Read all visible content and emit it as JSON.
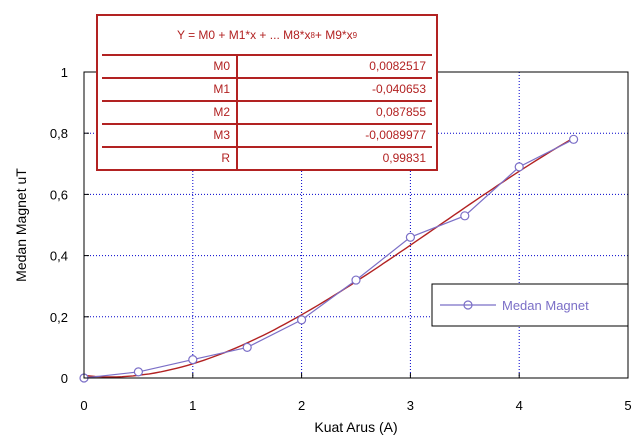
{
  "chart_data": {
    "type": "scatter",
    "xlabel": "Kuat Arus (A)",
    "ylabel": "Medan Magnet uT",
    "xlim": [
      0,
      5
    ],
    "ylim": [
      0,
      1
    ],
    "x_ticks": [
      "0",
      "1",
      "2",
      "3",
      "4",
      "5"
    ],
    "y_ticks": [
      "0",
      "0,2",
      "0,4",
      "0,6",
      "0,8",
      "1"
    ],
    "grid": true,
    "legend": "right",
    "series": [
      {
        "name": "Medan Magnet",
        "color": "#7b6fc7",
        "marker": "circle",
        "x": [
          0,
          0.5,
          1,
          1.5,
          2,
          2.5,
          3,
          3.5,
          4,
          4.5
        ],
        "y": [
          0.0,
          0.02,
          0.06,
          0.1,
          0.19,
          0.32,
          0.46,
          0.53,
          0.69,
          0.78
        ]
      }
    ],
    "fit": {
      "color": "#b22222",
      "equation_prefix": "Y = M0 + M1*x + ... M8*x",
      "equation_mid": " + M9*x",
      "exp1": "8",
      "exp2": "9",
      "coefficients": [
        {
          "name": "M0",
          "value": "0,0082517",
          "num": 0.0082517
        },
        {
          "name": "M1",
          "value": "-0,040653",
          "num": -0.040653
        },
        {
          "name": "M2",
          "value": "0,087855",
          "num": 0.087855
        },
        {
          "name": "M3",
          "value": "-0,0089977",
          "num": -0.0089977
        },
        {
          "name": "R",
          "value": "0,99831"
        }
      ]
    }
  }
}
